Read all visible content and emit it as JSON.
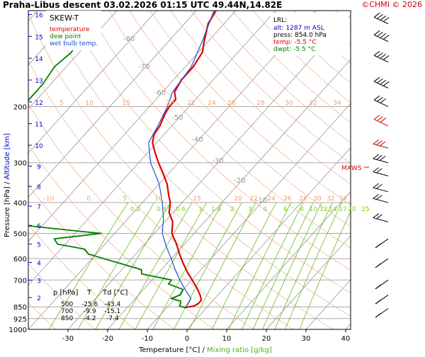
{
  "header": {
    "station": "Praha-Libus",
    "phase": "descent",
    "datetime": "03.02.2026 01:15 UTC",
    "location": "49.44N,14.82E",
    "copyright": "©CHMI © 2026"
  },
  "colors": {
    "temperature": "#e00000",
    "dewpoint": "#008000",
    "wetbulb": "#1f4fd6",
    "isotherm": "#888888",
    "dry_adiabat": "#f0b08a",
    "mixing_ratio": "#66bb22",
    "isobar": "#aaaaaa",
    "altitude": "#0000cc"
  },
  "chart_data": {
    "type": "line",
    "title": "SKEW-T",
    "xlabel": "Temperature [°C]",
    "xlabel_sep": "/",
    "xlabel2": "Mixing ratio [g/kg]",
    "ylabel_pressure": "Pressure [hPa]",
    "ylabel_sep": "/",
    "ylabel_altitude": "Altitude [km]",
    "x_ticks": [
      -30,
      -20,
      -10,
      0,
      10,
      20,
      30,
      40
    ],
    "p_ticks": [
      200,
      300,
      400,
      500,
      600,
      700,
      850,
      925,
      1000
    ],
    "altitude_ticks": [
      16,
      15,
      14,
      13,
      12,
      11,
      10,
      9,
      8,
      7,
      6,
      5,
      4,
      3,
      2
    ],
    "isotherm_labels": [
      -80,
      -70,
      -60,
      -50,
      -40,
      -30,
      -20,
      -10
    ],
    "dry_adiabat_labels_upper": [
      5,
      10,
      15,
      20,
      22,
      24,
      26,
      28,
      30,
      32,
      34
    ],
    "dry_adiabat_labels_lower": [
      -10,
      0,
      5,
      10,
      15,
      20,
      22,
      24,
      26,
      28,
      30,
      32,
      34
    ],
    "mixing_ratio_labels": [
      "0.2",
      "0.4",
      "0.6",
      "1",
      "1.4",
      "2",
      "3",
      "4",
      "6",
      "8",
      "10",
      "12",
      "14",
      "17",
      "20",
      "25"
    ],
    "legend": [
      "temperature",
      "dew point",
      "wet bulb temp."
    ],
    "lrl": {
      "title": "LRL:",
      "alt": "alt: 1287 m ASL",
      "press": "press: 854.0 hPa",
      "temp": "temp: -5.5 °C",
      "dwpt": "dwpt: -5.5 °C"
    },
    "mxws_label": "MXWS",
    "table": {
      "headers": [
        "p [hPa]",
        "T",
        "Td [°C]"
      ],
      "rows": [
        [
          "500",
          "-25.6",
          "-43.4"
        ],
        [
          "700",
          "-9.9",
          "-15.1"
        ],
        [
          "850",
          "-4.2",
          "-7.4"
        ]
      ]
    },
    "series": [
      {
        "name": "temperature",
        "points": [
          [
            100,
            -65
          ],
          [
            110,
            -64
          ],
          [
            125,
            -61
          ],
          [
            135,
            -59
          ],
          [
            150,
            -58
          ],
          [
            165,
            -58
          ],
          [
            180,
            -57
          ],
          [
            190,
            -55
          ],
          [
            200,
            -55
          ],
          [
            210,
            -54.5
          ],
          [
            230,
            -53
          ],
          [
            245,
            -52.5
          ],
          [
            260,
            -51
          ],
          [
            280,
            -48
          ],
          [
            300,
            -45
          ],
          [
            320,
            -42
          ],
          [
            350,
            -38
          ],
          [
            380,
            -35
          ],
          [
            400,
            -33
          ],
          [
            430,
            -31
          ],
          [
            460,
            -28
          ],
          [
            500,
            -25.6
          ],
          [
            540,
            -22
          ],
          [
            580,
            -19
          ],
          [
            620,
            -16
          ],
          [
            660,
            -13
          ],
          [
            700,
            -9.9
          ],
          [
            740,
            -7
          ],
          [
            780,
            -4.5
          ],
          [
            810,
            -3
          ],
          [
            830,
            -3
          ],
          [
            845,
            -3.5
          ],
          [
            854,
            -5.5
          ]
        ]
      },
      {
        "name": "wet bulb temp.",
        "points": [
          [
            100,
            -65.5
          ],
          [
            125,
            -61.5
          ],
          [
            150,
            -58.5
          ],
          [
            180,
            -57.5
          ],
          [
            200,
            -55.5
          ],
          [
            230,
            -53.5
          ],
          [
            260,
            -52
          ],
          [
            300,
            -47
          ],
          [
            350,
            -40
          ],
          [
            400,
            -35
          ],
          [
            450,
            -31
          ],
          [
            500,
            -28
          ],
          [
            550,
            -24
          ],
          [
            600,
            -20
          ],
          [
            650,
            -16.5
          ],
          [
            700,
            -13
          ],
          [
            750,
            -9.5
          ],
          [
            800,
            -6
          ],
          [
            830,
            -5.5
          ],
          [
            854,
            -5.5
          ]
        ]
      },
      {
        "name": "dew point",
        "points": [
          [
            100,
            -94
          ],
          [
            110,
            -93
          ],
          [
            125,
            -93
          ],
          [
            135,
            -92
          ],
          [
            150,
            -93
          ],
          [
            170,
            -92
          ],
          [
            200,
            -92
          ],
          [
            240,
            -88
          ],
          [
            270,
            -87
          ],
          [
            300,
            -88
          ],
          [
            330,
            -90
          ],
          [
            350,
            -90
          ],
          [
            370,
            -88
          ],
          [
            390,
            -87
          ],
          [
            410,
            -79
          ],
          [
            430,
            -72
          ],
          [
            450,
            -70
          ],
          [
            470,
            -66
          ],
          [
            490,
            -51
          ],
          [
            500,
            -43.4
          ],
          [
            520,
            -54
          ],
          [
            540,
            -52
          ],
          [
            560,
            -44
          ],
          [
            580,
            -42
          ],
          [
            600,
            -37
          ],
          [
            620,
            -32
          ],
          [
            650,
            -25
          ],
          [
            670,
            -24
          ],
          [
            700,
            -15.1
          ],
          [
            720,
            -15
          ],
          [
            750,
            -10
          ],
          [
            780,
            -9.5
          ],
          [
            800,
            -11
          ],
          [
            815,
            -8
          ],
          [
            830,
            -7.5
          ],
          [
            845,
            -7.2
          ],
          [
            854,
            -5.5
          ]
        ]
      }
    ],
    "wind_levels_hpa": [
      110,
      125,
      145,
      175,
      200,
      230,
      270,
      300,
      330,
      370,
      400,
      460,
      520,
      600,
      700,
      780,
      860
    ]
  }
}
